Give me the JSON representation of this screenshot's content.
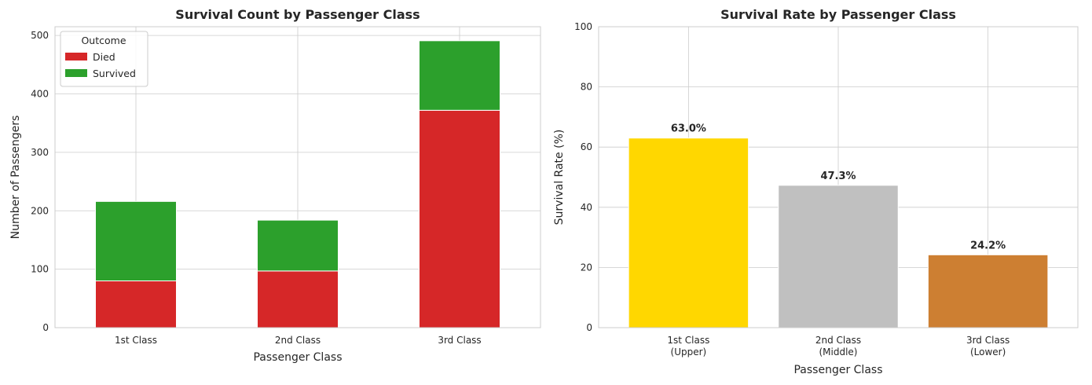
{
  "chart_data": [
    {
      "type": "bar",
      "stacked": true,
      "title": "Survival Count by Passenger Class",
      "xlabel": "Passenger Class",
      "ylabel": "Number of Passengers",
      "categories": [
        "1st Class",
        "2nd Class",
        "3rd Class"
      ],
      "series": [
        {
          "name": "Died",
          "values": [
            80,
            97,
            372
          ],
          "color": "#d62728"
        },
        {
          "name": "Survived",
          "values": [
            136,
            87,
            119
          ],
          "color": "#2ca02c"
        }
      ],
      "ylim": [
        0,
        515
      ],
      "yticks": [
        0,
        100,
        200,
        300,
        400,
        500
      ],
      "grid": true,
      "legend": {
        "title": "Outcome",
        "placement": "top-left"
      }
    },
    {
      "type": "bar",
      "title": "Survival Rate by Passenger Class",
      "xlabel": "Passenger Class",
      "ylabel": "Survival Rate (%)",
      "categories": [
        "1st Class\n(Upper)",
        "2nd Class\n(Middle)",
        "3rd Class\n(Lower)"
      ],
      "values": [
        63.0,
        47.3,
        24.2
      ],
      "data_labels": [
        "63.0%",
        "47.3%",
        "24.2%"
      ],
      "colors": [
        "#ffd700",
        "#c0c0c0",
        "#cd7f32"
      ],
      "ylim": [
        0,
        100
      ],
      "yticks": [
        0,
        20,
        40,
        60,
        80,
        100
      ],
      "grid": true
    }
  ]
}
